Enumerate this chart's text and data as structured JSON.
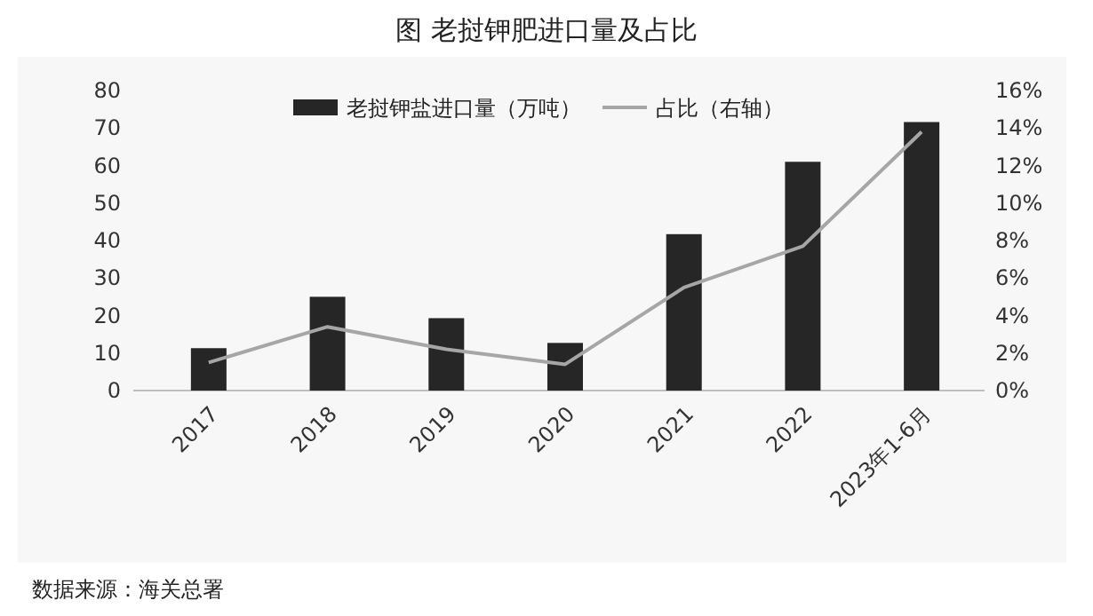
{
  "chart_data": {
    "type": "bar",
    "title": "图  老挝钾肥进口量及占比",
    "categories": [
      "2017",
      "2018",
      "2019",
      "2020",
      "2021",
      "2022",
      "2023年1-6月"
    ],
    "series": [
      {
        "name": "老挝钾盐进口量（万吨）",
        "color": "#262626",
        "values": [
          11.3,
          25,
          19.3,
          12.7,
          41.7,
          61,
          71.6
        ]
      },
      {
        "name": "占比（右轴）",
        "type": "line",
        "axis": "y2",
        "color": "#a6a6a6",
        "values": [
          1.5,
          3.4,
          2.2,
          1.4,
          5.5,
          7.7,
          13.8
        ]
      }
    ],
    "ylim": [
      0,
      80
    ],
    "yticks": [
      0,
      10,
      20,
      30,
      40,
      50,
      60,
      70,
      80
    ],
    "y2lim": [
      0,
      16
    ],
    "y2ticks": [
      {
        "value": 0,
        "label": "0%"
      },
      {
        "value": 2,
        "label": "2%"
      },
      {
        "value": 4,
        "label": "4%"
      },
      {
        "value": 6,
        "label": "6%"
      },
      {
        "value": 8,
        "label": "8%"
      },
      {
        "value": 10,
        "label": "10%"
      },
      {
        "value": 12,
        "label": "12%"
      },
      {
        "value": 14,
        "label": "14%"
      },
      {
        "value": 16,
        "label": "16%"
      }
    ],
    "legend": "top",
    "grid": false,
    "annotations": [
      "数据来源：海关总署"
    ]
  }
}
